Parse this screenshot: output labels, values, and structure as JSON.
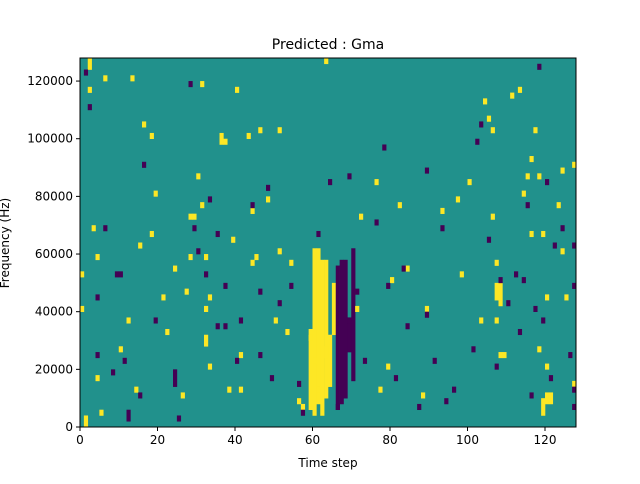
{
  "chart_data": {
    "type": "heatmap",
    "title": "Predicted : Gma",
    "xlabel": "Time step",
    "ylabel": "Frequency (Hz)",
    "xlim": [
      0,
      128
    ],
    "ylim": [
      0,
      128000
    ],
    "x_ticks": [
      0,
      20,
      40,
      60,
      80,
      100,
      120
    ],
    "y_ticks": [
      0,
      20000,
      40000,
      60000,
      80000,
      100000,
      120000
    ],
    "x_tick_labels": [
      "0",
      "20",
      "40",
      "60",
      "80",
      "100",
      "120"
    ],
    "y_tick_labels": [
      "0",
      "20000",
      "40000",
      "60000",
      "80000",
      "100000",
      "120000"
    ],
    "n_time_steps": 128,
    "n_freq_bins": 64,
    "freq_bin_hz": 2000,
    "grid": false,
    "legend": "none",
    "colors": {
      "background": "#21918c",
      "high": "#fde725",
      "low": "#440154"
    },
    "note_cells_format": "[time_step, freq_bin_start, freq_bin_end]",
    "high_cells": [
      [
        1,
        0,
        1
      ],
      [
        0,
        20,
        20
      ],
      [
        0,
        26,
        26
      ],
      [
        2,
        62,
        63
      ],
      [
        2,
        58,
        58
      ],
      [
        3,
        34,
        34
      ],
      [
        4,
        29,
        29
      ],
      [
        4,
        8,
        8
      ],
      [
        5,
        2,
        2
      ],
      [
        6,
        60,
        60
      ],
      [
        10,
        13,
        13
      ],
      [
        12,
        18,
        18
      ],
      [
        13,
        60,
        60
      ],
      [
        14,
        6,
        6
      ],
      [
        15,
        31,
        31
      ],
      [
        16,
        52,
        52
      ],
      [
        18,
        33,
        33
      ],
      [
        18,
        50,
        50
      ],
      [
        19,
        40,
        40
      ],
      [
        21,
        22,
        22
      ],
      [
        22,
        16,
        16
      ],
      [
        24,
        27,
        27
      ],
      [
        26,
        5,
        5
      ],
      [
        27,
        23,
        23
      ],
      [
        28,
        29,
        29
      ],
      [
        28,
        36,
        36
      ],
      [
        29,
        36,
        36
      ],
      [
        30,
        43,
        43
      ],
      [
        31,
        38,
        38
      ],
      [
        31,
        59,
        59
      ],
      [
        32,
        14,
        15
      ],
      [
        32,
        20,
        20
      ],
      [
        32,
        29,
        29
      ],
      [
        33,
        22,
        22
      ],
      [
        33,
        10,
        10
      ],
      [
        36,
        49,
        50
      ],
      [
        37,
        49,
        49
      ],
      [
        38,
        6,
        6
      ],
      [
        39,
        32,
        32
      ],
      [
        40,
        58,
        58
      ],
      [
        41,
        6,
        6
      ],
      [
        41,
        12,
        12
      ],
      [
        43,
        50,
        50
      ],
      [
        44,
        28,
        28
      ],
      [
        44,
        37,
        37
      ],
      [
        45,
        29,
        29
      ],
      [
        46,
        51,
        51
      ],
      [
        48,
        39,
        39
      ],
      [
        50,
        18,
        18
      ],
      [
        51,
        30,
        30
      ],
      [
        51,
        51,
        51
      ],
      [
        53,
        16,
        16
      ],
      [
        54,
        28,
        28
      ],
      [
        56,
        4,
        4
      ],
      [
        57,
        3,
        3
      ],
      [
        59,
        15,
        15
      ],
      [
        60,
        11,
        11
      ],
      [
        61,
        6,
        6
      ],
      [
        63,
        12,
        13
      ],
      [
        63,
        63,
        63
      ],
      [
        71,
        20,
        20
      ],
      [
        72,
        36,
        36
      ],
      [
        76,
        42,
        42
      ],
      [
        77,
        6,
        6
      ],
      [
        79,
        10,
        10
      ],
      [
        80,
        25,
        25
      ],
      [
        82,
        38,
        38
      ],
      [
        84,
        27,
        27
      ],
      [
        88,
        5,
        5
      ],
      [
        89,
        20,
        20
      ],
      [
        93,
        37,
        37
      ],
      [
        97,
        39,
        39
      ],
      [
        98,
        26,
        26
      ],
      [
        100,
        42,
        42
      ],
      [
        103,
        18,
        18
      ],
      [
        104,
        56,
        56
      ],
      [
        105,
        53,
        53
      ],
      [
        106,
        51,
        51
      ],
      [
        106,
        36,
        36
      ],
      [
        107,
        18,
        18
      ],
      [
        107,
        28,
        28
      ],
      [
        108,
        12,
        12
      ],
      [
        108,
        21,
        21
      ],
      [
        109,
        12,
        12
      ],
      [
        111,
        57,
        57
      ],
      [
        113,
        58,
        58
      ],
      [
        114,
        40,
        40
      ],
      [
        115,
        43,
        43
      ],
      [
        116,
        33,
        33
      ],
      [
        116,
        46,
        46
      ],
      [
        117,
        51,
        51
      ],
      [
        118,
        13,
        13
      ],
      [
        118,
        43,
        43
      ],
      [
        119,
        33,
        33
      ],
      [
        120,
        22,
        22
      ],
      [
        120,
        10,
        10
      ],
      [
        123,
        38,
        38
      ],
      [
        124,
        30,
        30
      ],
      [
        124,
        44,
        44
      ],
      [
        125,
        22,
        22
      ],
      [
        127,
        7,
        7
      ],
      [
        127,
        45,
        45
      ]
    ],
    "low_cells": [
      [
        1,
        61,
        61
      ],
      [
        2,
        55,
        55
      ],
      [
        4,
        12,
        12
      ],
      [
        4,
        22,
        22
      ],
      [
        6,
        34,
        34
      ],
      [
        8,
        9,
        9
      ],
      [
        9,
        26,
        26
      ],
      [
        10,
        26,
        26
      ],
      [
        11,
        11,
        11
      ],
      [
        12,
        1,
        2
      ],
      [
        15,
        5,
        5
      ],
      [
        16,
        45,
        45
      ],
      [
        19,
        18,
        18
      ],
      [
        24,
        7,
        9
      ],
      [
        25,
        1,
        1
      ],
      [
        28,
        59,
        59
      ],
      [
        29,
        34,
        34
      ],
      [
        30,
        30,
        30
      ],
      [
        32,
        26,
        26
      ],
      [
        33,
        39,
        39
      ],
      [
        35,
        17,
        17
      ],
      [
        35,
        33,
        33
      ],
      [
        37,
        24,
        24
      ],
      [
        37,
        17,
        17
      ],
      [
        40,
        11,
        11
      ],
      [
        41,
        18,
        18
      ],
      [
        44,
        38,
        38
      ],
      [
        46,
        12,
        12
      ],
      [
        46,
        23,
        23
      ],
      [
        48,
        41,
        41
      ],
      [
        49,
        8,
        8
      ],
      [
        51,
        21,
        21
      ],
      [
        54,
        24,
        24
      ],
      [
        56,
        7,
        7
      ],
      [
        57,
        2,
        2
      ],
      [
        61,
        33,
        33
      ],
      [
        64,
        42,
        42
      ],
      [
        66,
        3,
        3
      ],
      [
        69,
        18,
        18
      ],
      [
        69,
        43,
        43
      ],
      [
        71,
        23,
        23
      ],
      [
        73,
        11,
        11
      ],
      [
        76,
        35,
        35
      ],
      [
        78,
        48,
        48
      ],
      [
        79,
        24,
        24
      ],
      [
        81,
        8,
        8
      ],
      [
        83,
        27,
        27
      ],
      [
        84,
        17,
        17
      ],
      [
        87,
        3,
        3
      ],
      [
        89,
        19,
        19
      ],
      [
        89,
        44,
        44
      ],
      [
        91,
        11,
        11
      ],
      [
        93,
        34,
        34
      ],
      [
        94,
        4,
        4
      ],
      [
        96,
        6,
        6
      ],
      [
        101,
        13,
        13
      ],
      [
        102,
        49,
        49
      ],
      [
        103,
        52,
        52
      ],
      [
        105,
        32,
        32
      ],
      [
        107,
        10,
        10
      ],
      [
        108,
        25,
        25
      ],
      [
        110,
        21,
        21
      ],
      [
        112,
        26,
        26
      ],
      [
        113,
        16,
        16
      ],
      [
        114,
        25,
        25
      ],
      [
        115,
        38,
        38
      ],
      [
        116,
        5,
        5
      ],
      [
        117,
        20,
        20
      ],
      [
        118,
        62,
        62
      ],
      [
        119,
        18,
        18
      ],
      [
        120,
        42,
        42
      ],
      [
        121,
        8,
        8
      ],
      [
        122,
        31,
        31
      ],
      [
        124,
        34,
        34
      ],
      [
        126,
        12,
        12
      ],
      [
        127,
        3,
        3
      ],
      [
        127,
        6,
        6
      ],
      [
        127,
        24,
        24
      ],
      [
        127,
        31,
        31
      ]
    ],
    "high_regions": [
      [
        59,
        3,
        16
      ],
      [
        60,
        2,
        30
      ],
      [
        61,
        4,
        30
      ],
      [
        62,
        2,
        28
      ],
      [
        63,
        5,
        28
      ],
      [
        64,
        7,
        15
      ],
      [
        65,
        16,
        24
      ],
      [
        107,
        22,
        24
      ],
      [
        108,
        22,
        24
      ],
      [
        120,
        4,
        5
      ],
      [
        121,
        4,
        5
      ],
      [
        119,
        2,
        4
      ]
    ],
    "low_regions": [
      [
        66,
        3,
        27
      ],
      [
        67,
        4,
        28
      ],
      [
        68,
        5,
        28
      ],
      [
        69,
        13,
        18
      ],
      [
        70,
        8,
        30
      ]
    ]
  }
}
